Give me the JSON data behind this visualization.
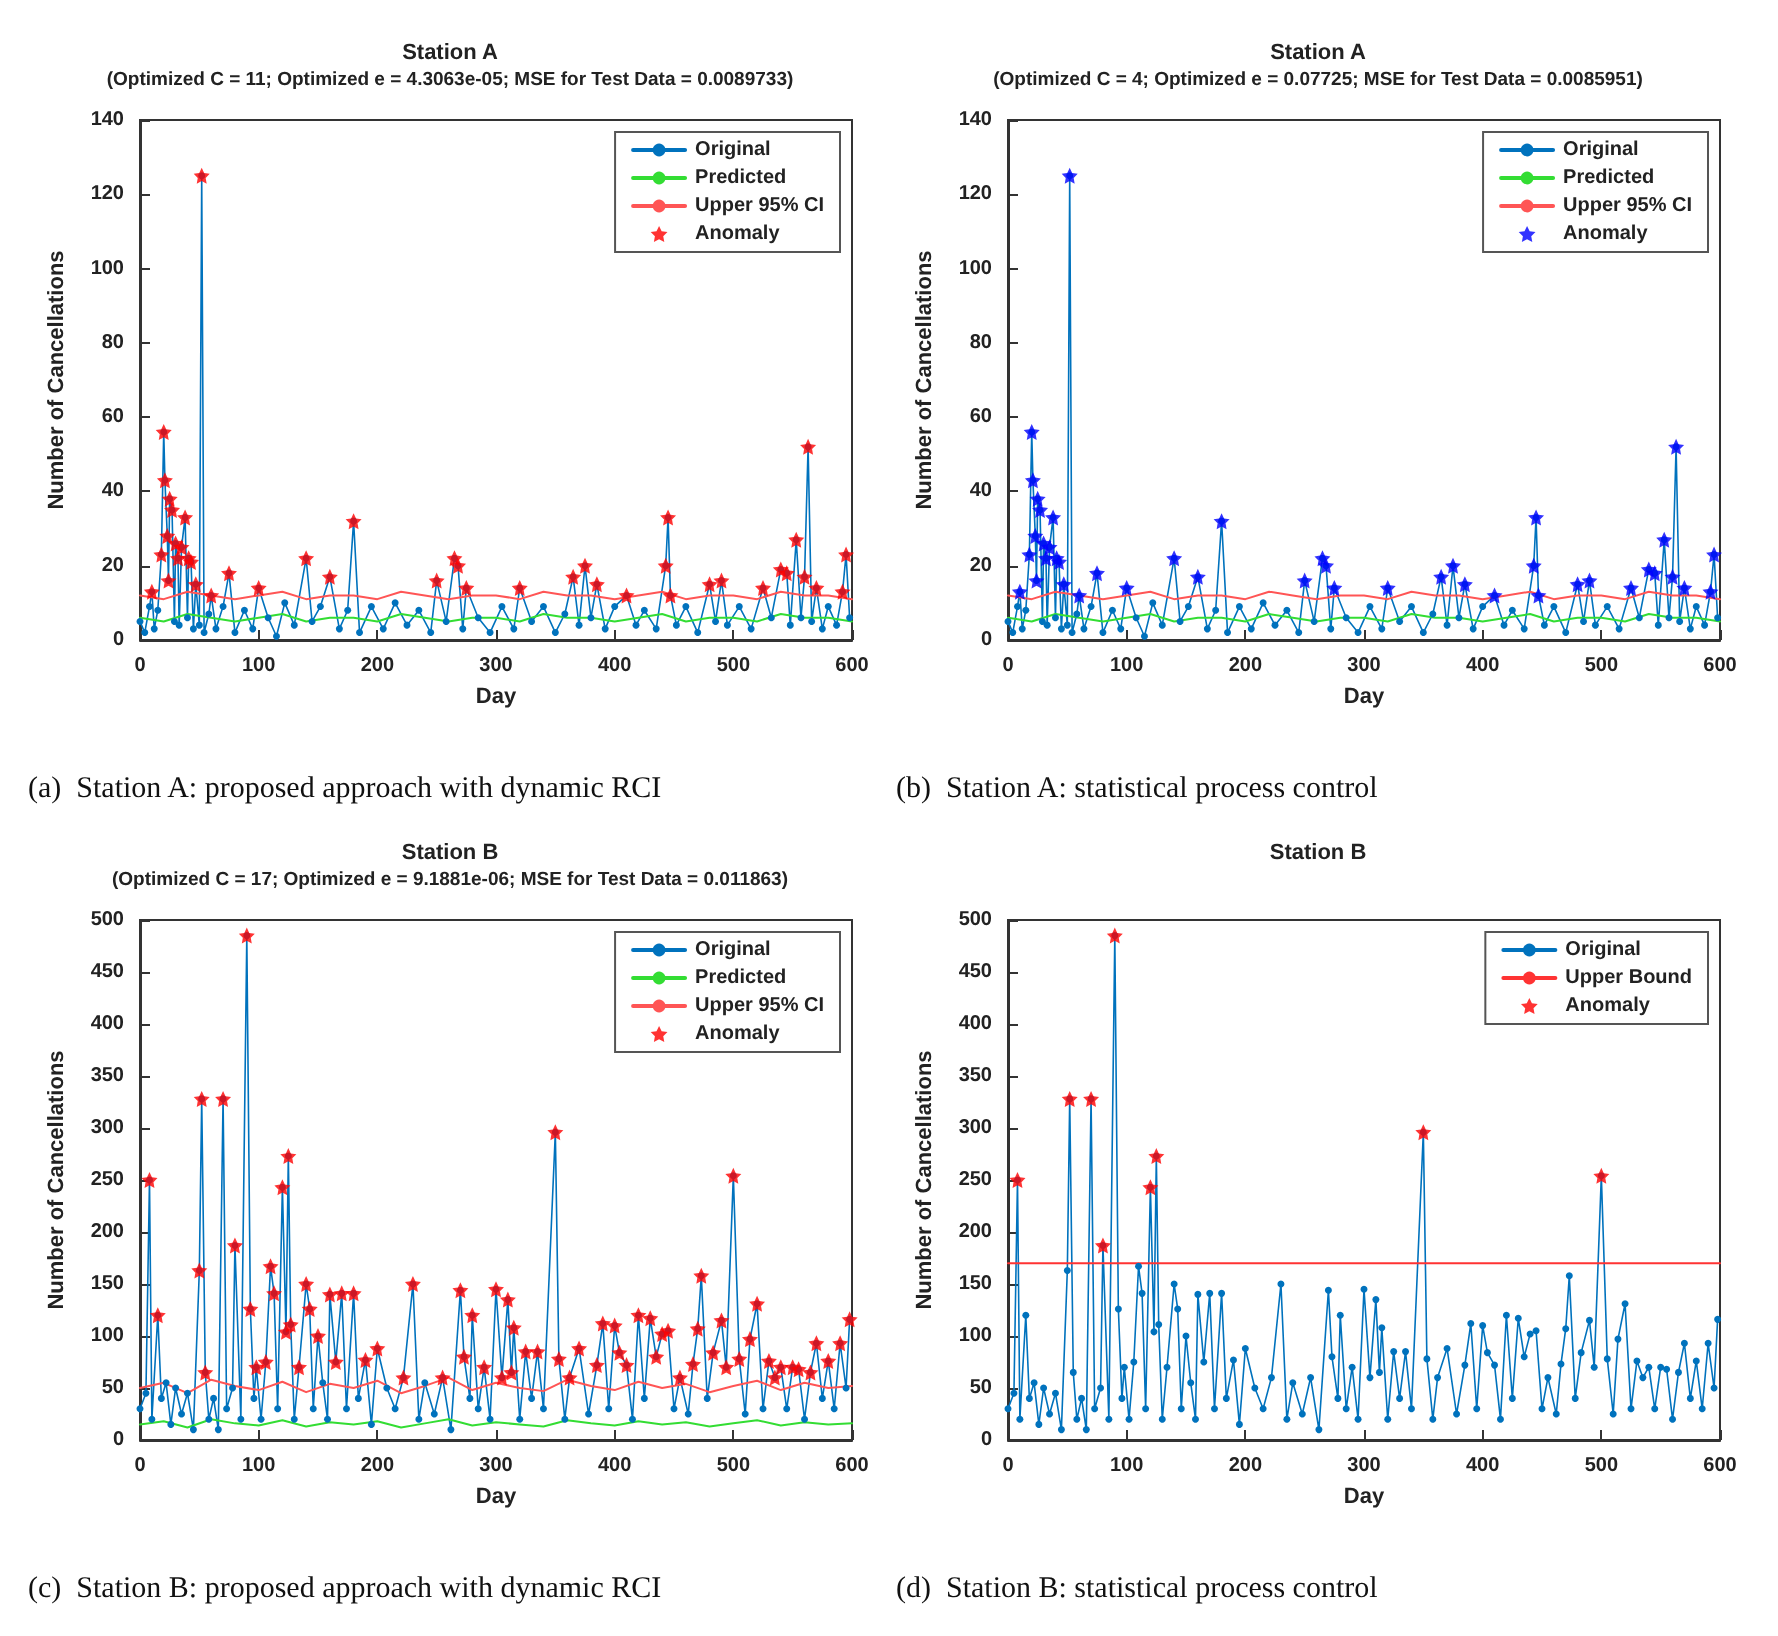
{
  "chart_data": [
    {
      "type": "line",
      "title": "Station A",
      "subtitle": "(Optimized C = 11; Optimized e = 4.3063e-05; MSE for Test Data = 0.0089733)",
      "xlabel": "Day",
      "ylabel": "Number of Cancellations",
      "annotations": [
        "(a)  Station A: proposed approach with dynamic RCI"
      ],
      "xlim": [
        0,
        600
      ],
      "xticks": [
        0,
        100,
        200,
        300,
        400,
        500,
        600
      ],
      "ylim": [
        0,
        140
      ],
      "yticks": [
        0,
        20,
        40,
        60,
        80,
        100,
        120,
        140
      ],
      "grid": false,
      "legend": "top right",
      "series": [
        {
          "name": "Original",
          "color": "#0072bd",
          "type": "line",
          "marker": "circle",
          "x": [
            0,
            4,
            8,
            10,
            12,
            15,
            18,
            20,
            21,
            23,
            24,
            25,
            27,
            29,
            30,
            32,
            33,
            35,
            38,
            40,
            41,
            43,
            45,
            47,
            50,
            52,
            54,
            58,
            60,
            64,
            70,
            75,
            80,
            88,
            95,
            100,
            108,
            115,
            122,
            130,
            140,
            145,
            152,
            160,
            168,
            175,
            180,
            185,
            195,
            205,
            215,
            225,
            235,
            245,
            250,
            258,
            265,
            268,
            272,
            275,
            285,
            295,
            305,
            315,
            320,
            330,
            340,
            350,
            358,
            365,
            370,
            375,
            380,
            385,
            392,
            400,
            410,
            418,
            425,
            435,
            443,
            445,
            447,
            452,
            460,
            470,
            480,
            485,
            490,
            495,
            505,
            515,
            525,
            532,
            540,
            545,
            548,
            553,
            557,
            560,
            563,
            566,
            570,
            575,
            580,
            587,
            592,
            595,
            598
          ],
          "values": [
            5,
            2,
            9,
            13,
            3,
            8,
            23,
            56,
            43,
            28,
            16,
            38,
            35,
            5,
            26,
            22,
            4,
            25,
            33,
            6,
            22,
            21,
            3,
            15,
            4,
            125,
            2,
            7,
            12,
            3,
            9,
            18,
            2,
            8,
            3,
            14,
            6,
            1,
            10,
            4,
            22,
            5,
            9,
            17,
            3,
            8,
            32,
            2,
            9,
            3,
            10,
            4,
            8,
            2,
            16,
            5,
            22,
            20,
            3,
            14,
            6,
            2,
            9,
            3,
            14,
            5,
            9,
            2,
            7,
            17,
            4,
            20,
            6,
            15,
            3,
            9,
            12,
            4,
            8,
            3,
            20,
            33,
            12,
            4,
            9,
            2,
            15,
            5,
            16,
            4,
            9,
            3,
            14,
            6,
            19,
            18,
            4,
            27,
            6,
            17,
            52,
            5,
            14,
            3,
            9,
            4,
            13,
            23,
            6
          ]
        },
        {
          "name": "Predicted",
          "color": "#33dd33",
          "type": "line",
          "marker": "none",
          "x": [
            0,
            20,
            40,
            60,
            80,
            100,
            120,
            140,
            160,
            180,
            200,
            220,
            240,
            260,
            280,
            300,
            320,
            340,
            360,
            380,
            400,
            420,
            440,
            460,
            480,
            500,
            520,
            540,
            560,
            580,
            600
          ],
          "values": [
            6,
            5,
            7,
            6,
            5,
            6,
            7,
            5,
            6,
            6,
            5,
            7,
            6,
            5,
            6,
            6,
            5,
            7,
            6,
            6,
            5,
            6,
            7,
            5,
            6,
            6,
            5,
            7,
            6,
            6,
            5
          ]
        },
        {
          "name": "Upper 95% CI",
          "color": "#ff5555",
          "type": "line",
          "marker": "none",
          "x": [
            0,
            20,
            40,
            60,
            80,
            100,
            120,
            140,
            160,
            180,
            200,
            220,
            240,
            260,
            280,
            300,
            320,
            340,
            360,
            380,
            400,
            420,
            440,
            460,
            480,
            500,
            520,
            540,
            560,
            580,
            600
          ],
          "values": [
            12,
            11,
            13,
            12,
            11,
            12,
            13,
            11,
            12,
            12,
            11,
            13,
            12,
            11,
            12,
            12,
            11,
            13,
            12,
            12,
            11,
            12,
            13,
            11,
            12,
            12,
            11,
            13,
            12,
            12,
            11
          ]
        },
        {
          "name": "Anomaly",
          "color": "#ff0000",
          "type": "scatter",
          "marker": "star",
          "x": [
            10,
            18,
            20,
            21,
            23,
            24,
            25,
            27,
            30,
            32,
            35,
            38,
            41,
            43,
            47,
            52,
            60,
            75,
            100,
            140,
            160,
            180,
            250,
            265,
            268,
            275,
            320,
            365,
            375,
            385,
            410,
            443,
            445,
            447,
            480,
            490,
            525,
            540,
            545,
            553,
            560,
            563,
            570,
            592,
            595
          ],
          "values": [
            13,
            23,
            56,
            43,
            28,
            16,
            38,
            35,
            26,
            22,
            25,
            33,
            22,
            21,
            15,
            125,
            12,
            18,
            14,
            22,
            17,
            32,
            16,
            22,
            20,
            14,
            14,
            17,
            20,
            15,
            12,
            20,
            33,
            12,
            15,
            16,
            14,
            19,
            18,
            27,
            17,
            52,
            14,
            13,
            23
          ]
        }
      ]
    },
    {
      "type": "line",
      "title": "Station A",
      "subtitle": "(Optimized C = 4; Optimized e = 0.07725; MSE for Test Data = 0.0085951)",
      "xlabel": "Day",
      "ylabel": "Number of Cancellations",
      "annotations": [
        "(b)  Station A: statistical process control"
      ],
      "xlim": [
        0,
        600
      ],
      "xticks": [
        0,
        100,
        200,
        300,
        400,
        500,
        600
      ],
      "ylim": [
        0,
        140
      ],
      "yticks": [
        0,
        20,
        40,
        60,
        80,
        100,
        120,
        140
      ],
      "grid": false,
      "legend": "top right",
      "series": [
        {
          "name": "Original",
          "color": "#0072bd",
          "type": "line",
          "marker": "circle",
          "x": [
            0,
            4,
            8,
            10,
            12,
            15,
            18,
            20,
            21,
            23,
            24,
            25,
            27,
            29,
            30,
            32,
            33,
            35,
            38,
            40,
            41,
            43,
            45,
            47,
            50,
            52,
            54,
            58,
            60,
            64,
            70,
            75,
            80,
            88,
            95,
            100,
            108,
            115,
            122,
            130,
            140,
            145,
            152,
            160,
            168,
            175,
            180,
            185,
            195,
            205,
            215,
            225,
            235,
            245,
            250,
            258,
            265,
            268,
            272,
            275,
            285,
            295,
            305,
            315,
            320,
            330,
            340,
            350,
            358,
            365,
            370,
            375,
            380,
            385,
            392,
            400,
            410,
            418,
            425,
            435,
            443,
            445,
            447,
            452,
            460,
            470,
            480,
            485,
            490,
            495,
            505,
            515,
            525,
            532,
            540,
            545,
            548,
            553,
            557,
            560,
            563,
            566,
            570,
            575,
            580,
            587,
            592,
            595,
            598
          ],
          "values": [
            5,
            2,
            9,
            13,
            3,
            8,
            23,
            56,
            43,
            28,
            16,
            38,
            35,
            5,
            26,
            22,
            4,
            25,
            33,
            6,
            22,
            21,
            3,
            15,
            4,
            125,
            2,
            7,
            12,
            3,
            9,
            18,
            2,
            8,
            3,
            14,
            6,
            1,
            10,
            4,
            22,
            5,
            9,
            17,
            3,
            8,
            32,
            2,
            9,
            3,
            10,
            4,
            8,
            2,
            16,
            5,
            22,
            20,
            3,
            14,
            6,
            2,
            9,
            3,
            14,
            5,
            9,
            2,
            7,
            17,
            4,
            20,
            6,
            15,
            3,
            9,
            12,
            4,
            8,
            3,
            20,
            33,
            12,
            4,
            9,
            2,
            15,
            5,
            16,
            4,
            9,
            3,
            14,
            6,
            19,
            18,
            4,
            27,
            6,
            17,
            52,
            5,
            14,
            3,
            9,
            4,
            13,
            23,
            6
          ]
        },
        {
          "name": "Predicted",
          "color": "#33dd33",
          "type": "line",
          "marker": "none",
          "x": [
            0,
            20,
            40,
            60,
            80,
            100,
            120,
            140,
            160,
            180,
            200,
            220,
            240,
            260,
            280,
            300,
            320,
            340,
            360,
            380,
            400,
            420,
            440,
            460,
            480,
            500,
            520,
            540,
            560,
            580,
            600
          ],
          "values": [
            6,
            5,
            7,
            6,
            5,
            6,
            7,
            5,
            6,
            6,
            5,
            7,
            6,
            5,
            6,
            6,
            5,
            7,
            6,
            6,
            5,
            6,
            7,
            5,
            6,
            6,
            5,
            7,
            6,
            6,
            5
          ]
        },
        {
          "name": "Upper 95% CI",
          "color": "#ff5555",
          "type": "line",
          "marker": "none",
          "x": [
            0,
            20,
            40,
            60,
            80,
            100,
            120,
            140,
            160,
            180,
            200,
            220,
            240,
            260,
            280,
            300,
            320,
            340,
            360,
            380,
            400,
            420,
            440,
            460,
            480,
            500,
            520,
            540,
            560,
            580,
            600
          ],
          "values": [
            12,
            11,
            13,
            12,
            11,
            12,
            13,
            11,
            12,
            12,
            11,
            13,
            12,
            11,
            12,
            12,
            11,
            13,
            12,
            12,
            11,
            12,
            13,
            11,
            12,
            12,
            11,
            13,
            12,
            12,
            11
          ]
        },
        {
          "name": "Anomaly",
          "color": "#0000ff",
          "type": "scatter",
          "marker": "star",
          "x": [
            10,
            18,
            20,
            21,
            23,
            24,
            25,
            27,
            30,
            32,
            35,
            38,
            41,
            43,
            47,
            52,
            60,
            75,
            100,
            140,
            160,
            180,
            250,
            265,
            268,
            275,
            320,
            365,
            375,
            385,
            410,
            443,
            445,
            447,
            480,
            490,
            525,
            540,
            545,
            553,
            560,
            563,
            570,
            592,
            595
          ],
          "values": [
            13,
            23,
            56,
            43,
            28,
            16,
            38,
            35,
            26,
            22,
            25,
            33,
            22,
            21,
            15,
            125,
            12,
            18,
            14,
            22,
            17,
            32,
            16,
            22,
            20,
            14,
            14,
            17,
            20,
            15,
            12,
            20,
            33,
            12,
            15,
            16,
            14,
            19,
            18,
            27,
            17,
            52,
            14,
            13,
            23
          ]
        }
      ]
    },
    {
      "type": "line",
      "title": "Station B",
      "subtitle": "(Optimized C = 17; Optimized e = 9.1881e-06; MSE for Test Data = 0.011863)",
      "xlabel": "Day",
      "ylabel": "Number of Cancellations",
      "annotations": [
        "(c)  Station B: proposed approach with dynamic RCI"
      ],
      "xlim": [
        0,
        600
      ],
      "xticks": [
        0,
        100,
        200,
        300,
        400,
        500,
        600
      ],
      "ylim": [
        0,
        500
      ],
      "yticks": [
        0,
        50,
        100,
        150,
        200,
        250,
        300,
        350,
        400,
        450,
        500
      ],
      "grid": false,
      "legend": "top right",
      "series": [
        {
          "name": "Original",
          "color": "#0072bd",
          "type": "line",
          "marker": "circle",
          "x": [
            0,
            5,
            8,
            10,
            15,
            18,
            22,
            26,
            30,
            35,
            40,
            45,
            50,
            52,
            55,
            58,
            62,
            66,
            70,
            73,
            78,
            80,
            85,
            90,
            93,
            96,
            98,
            102,
            106,
            110,
            113,
            116,
            120,
            123,
            125,
            127,
            130,
            134,
            140,
            143,
            146,
            150,
            154,
            158,
            160,
            165,
            170,
            174,
            180,
            184,
            190,
            195,
            200,
            208,
            215,
            222,
            230,
            235,
            240,
            248,
            255,
            262,
            270,
            273,
            278,
            280,
            285,
            290,
            295,
            300,
            305,
            310,
            313,
            315,
            320,
            325,
            330,
            335,
            340,
            350,
            353,
            358,
            362,
            370,
            378,
            385,
            390,
            395,
            400,
            404,
            410,
            415,
            420,
            425,
            430,
            435,
            440,
            445,
            450,
            455,
            462,
            466,
            470,
            473,
            478,
            483,
            490,
            494,
            500,
            505,
            510,
            514,
            520,
            525,
            530,
            535,
            540,
            545,
            550,
            555,
            560,
            565,
            570,
            575,
            580,
            585,
            590,
            595,
            598
          ],
          "values": [
            30,
            45,
            250,
            20,
            120,
            40,
            55,
            15,
            50,
            25,
            45,
            10,
            163,
            328,
            65,
            20,
            40,
            10,
            328,
            30,
            50,
            187,
            20,
            485,
            126,
            40,
            70,
            20,
            75,
            167,
            141,
            30,
            243,
            104,
            273,
            111,
            20,
            70,
            150,
            126,
            30,
            100,
            55,
            20,
            140,
            75,
            141,
            30,
            141,
            40,
            77,
            15,
            88,
            50,
            30,
            60,
            150,
            20,
            55,
            25,
            60,
            10,
            144,
            80,
            40,
            120,
            30,
            70,
            20,
            145,
            60,
            135,
            65,
            108,
            20,
            85,
            40,
            85,
            30,
            296,
            78,
            20,
            60,
            88,
            25,
            72,
            112,
            30,
            110,
            84,
            72,
            20,
            120,
            40,
            117,
            80,
            102,
            105,
            30,
            60,
            25,
            73,
            107,
            158,
            40,
            84,
            115,
            70,
            254,
            78,
            25,
            97,
            131,
            30,
            76,
            60,
            70,
            30,
            70,
            68,
            20,
            65,
            93,
            40,
            76,
            30,
            93,
            50,
            116
          ]
        },
        {
          "name": "Predicted",
          "color": "#33dd33",
          "type": "line",
          "marker": "none",
          "x": [
            0,
            20,
            40,
            60,
            80,
            100,
            120,
            140,
            160,
            180,
            200,
            220,
            240,
            260,
            280,
            300,
            320,
            340,
            360,
            380,
            400,
            420,
            440,
            460,
            480,
            500,
            520,
            540,
            560,
            580,
            600
          ],
          "values": [
            15,
            18,
            12,
            20,
            16,
            14,
            19,
            13,
            17,
            15,
            18,
            12,
            16,
            20,
            14,
            17,
            15,
            13,
            19,
            16,
            14,
            18,
            15,
            17,
            13,
            16,
            19,
            14,
            17,
            15,
            16
          ]
        },
        {
          "name": "Upper 95% CI",
          "color": "#ff5555",
          "type": "line",
          "marker": "none",
          "x": [
            0,
            20,
            40,
            60,
            80,
            100,
            120,
            140,
            160,
            180,
            200,
            220,
            240,
            260,
            280,
            300,
            320,
            340,
            360,
            380,
            400,
            420,
            440,
            460,
            480,
            500,
            520,
            540,
            560,
            580,
            600
          ],
          "values": [
            50,
            55,
            45,
            58,
            52,
            48,
            56,
            46,
            54,
            50,
            57,
            45,
            52,
            60,
            48,
            55,
            50,
            47,
            58,
            52,
            48,
            56,
            50,
            54,
            46,
            52,
            57,
            48,
            55,
            50,
            52
          ]
        },
        {
          "name": "Anomaly",
          "color": "#ff0000",
          "type": "scatter",
          "marker": "star",
          "x": [
            8,
            15,
            50,
            52,
            55,
            70,
            80,
            90,
            93,
            98,
            106,
            110,
            113,
            120,
            123,
            125,
            127,
            134,
            140,
            143,
            150,
            160,
            165,
            170,
            180,
            190,
            200,
            222,
            230,
            255,
            270,
            273,
            280,
            290,
            300,
            305,
            310,
            313,
            315,
            325,
            335,
            350,
            353,
            362,
            370,
            385,
            390,
            400,
            404,
            410,
            420,
            430,
            435,
            440,
            445,
            455,
            466,
            470,
            473,
            483,
            490,
            494,
            500,
            505,
            514,
            520,
            530,
            535,
            540,
            550,
            555,
            565,
            570,
            580,
            590,
            598
          ],
          "values": [
            250,
            120,
            163,
            328,
            65,
            328,
            187,
            485,
            126,
            70,
            75,
            167,
            141,
            243,
            104,
            273,
            111,
            70,
            150,
            126,
            100,
            140,
            75,
            141,
            141,
            77,
            88,
            60,
            150,
            60,
            144,
            80,
            120,
            70,
            145,
            60,
            135,
            65,
            108,
            85,
            85,
            296,
            78,
            60,
            88,
            72,
            112,
            110,
            84,
            72,
            120,
            117,
            80,
            102,
            105,
            60,
            73,
            107,
            158,
            84,
            115,
            70,
            254,
            78,
            97,
            131,
            76,
            60,
            70,
            70,
            68,
            65,
            93,
            76,
            93,
            116
          ]
        }
      ]
    },
    {
      "type": "line",
      "title": "Station B",
      "xlabel": "Day",
      "ylabel": "Number of Cancellations",
      "annotations": [
        "(d)  Station B: statistical process control"
      ],
      "xlim": [
        0,
        600
      ],
      "xticks": [
        0,
        100,
        200,
        300,
        400,
        500,
        600
      ],
      "ylim": [
        0,
        500
      ],
      "yticks": [
        0,
        50,
        100,
        150,
        200,
        250,
        300,
        350,
        400,
        450,
        500
      ],
      "grid": false,
      "legend": "top right",
      "series": [
        {
          "name": "Original",
          "color": "#0072bd",
          "type": "line",
          "marker": "circle",
          "x": [
            0,
            5,
            8,
            10,
            15,
            18,
            22,
            26,
            30,
            35,
            40,
            45,
            50,
            52,
            55,
            58,
            62,
            66,
            70,
            73,
            78,
            80,
            85,
            90,
            93,
            96,
            98,
            102,
            106,
            110,
            113,
            116,
            120,
            123,
            125,
            127,
            130,
            134,
            140,
            143,
            146,
            150,
            154,
            158,
            160,
            165,
            170,
            174,
            180,
            184,
            190,
            195,
            200,
            208,
            215,
            222,
            230,
            235,
            240,
            248,
            255,
            262,
            270,
            273,
            278,
            280,
            285,
            290,
            295,
            300,
            305,
            310,
            313,
            315,
            320,
            325,
            330,
            335,
            340,
            350,
            353,
            358,
            362,
            370,
            378,
            385,
            390,
            395,
            400,
            404,
            410,
            415,
            420,
            425,
            430,
            435,
            440,
            445,
            450,
            455,
            462,
            466,
            470,
            473,
            478,
            483,
            490,
            494,
            500,
            505,
            510,
            514,
            520,
            525,
            530,
            535,
            540,
            545,
            550,
            555,
            560,
            565,
            570,
            575,
            580,
            585,
            590,
            595,
            598
          ],
          "values": [
            30,
            45,
            250,
            20,
            120,
            40,
            55,
            15,
            50,
            25,
            45,
            10,
            163,
            328,
            65,
            20,
            40,
            10,
            328,
            30,
            50,
            187,
            20,
            485,
            126,
            40,
            70,
            20,
            75,
            167,
            141,
            30,
            243,
            104,
            273,
            111,
            20,
            70,
            150,
            126,
            30,
            100,
            55,
            20,
            140,
            75,
            141,
            30,
            141,
            40,
            77,
            15,
            88,
            50,
            30,
            60,
            150,
            20,
            55,
            25,
            60,
            10,
            144,
            80,
            40,
            120,
            30,
            70,
            20,
            145,
            60,
            135,
            65,
            108,
            20,
            85,
            40,
            85,
            30,
            296,
            78,
            20,
            60,
            88,
            25,
            72,
            112,
            30,
            110,
            84,
            72,
            20,
            120,
            40,
            117,
            80,
            102,
            105,
            30,
            60,
            25,
            73,
            107,
            158,
            40,
            84,
            115,
            70,
            254,
            78,
            25,
            97,
            131,
            30,
            76,
            60,
            70,
            30,
            70,
            68,
            20,
            65,
            93,
            40,
            76,
            30,
            93,
            50,
            116
          ]
        },
        {
          "name": "Upper Bound",
          "color": "#ff3333",
          "type": "line",
          "marker": "none",
          "x": [
            0,
            600
          ],
          "values": [
            170,
            170
          ]
        },
        {
          "name": "Anomaly",
          "color": "#ff0000",
          "type": "scatter",
          "marker": "star",
          "x": [
            8,
            52,
            70,
            80,
            90,
            120,
            125,
            350,
            500
          ],
          "values": [
            250,
            328,
            328,
            187,
            485,
            243,
            273,
            296,
            254
          ]
        }
      ]
    }
  ]
}
